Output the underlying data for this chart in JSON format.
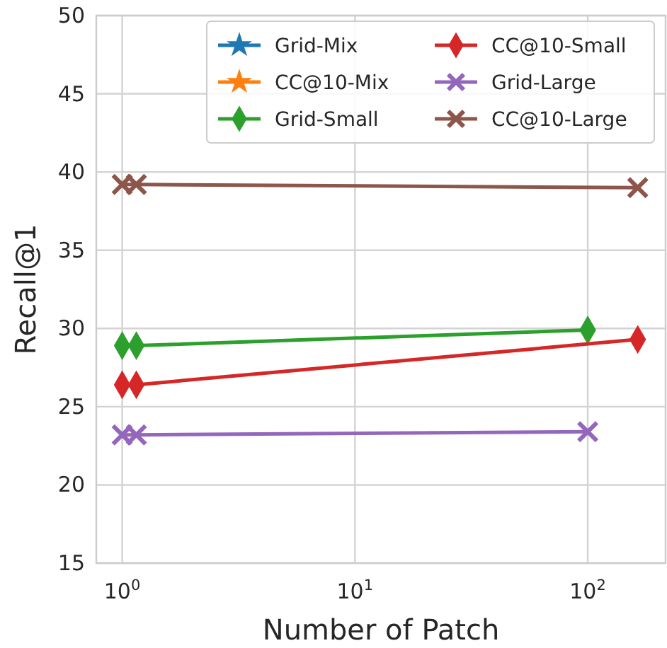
{
  "chart_data": {
    "type": "line",
    "xlabel": "Number of Patch",
    "ylabel": "Recall@1",
    "log": "x",
    "xlim": [
      0.774,
      216
    ],
    "ylim": [
      15,
      50
    ],
    "xticks": [
      {
        "value": 1,
        "label": "10$^{0}$"
      },
      {
        "value": 10,
        "label": "10$^{1}$"
      },
      {
        "value": 100,
        "label": "10$^{2}$"
      }
    ],
    "yticks": [
      15,
      20,
      25,
      30,
      35,
      40,
      45,
      50
    ],
    "grid": true,
    "legend": "top right",
    "series": [
      {
        "name": "Grid-Mix",
        "color": "#1f77b4",
        "marker": "star"
      },
      {
        "name": "CC@10-Mix",
        "color": "#ff7f0e",
        "marker": "star"
      },
      {
        "name": "Grid-Small",
        "color": "#2ca02c",
        "marker": "diamond",
        "x": [
          1,
          1.15,
          100
        ],
        "values": [
          28.9,
          28.9,
          29.9
        ]
      },
      {
        "name": "CC@10-Small",
        "color": "#d62728",
        "marker": "diamond",
        "x": [
          1,
          1.15,
          164
        ],
        "values": [
          26.4,
          26.4,
          29.3
        ]
      },
      {
        "name": "Grid-Large",
        "color": "#9467bd",
        "marker": "cross",
        "x": [
          1,
          1.15,
          100
        ],
        "values": [
          23.2,
          23.2,
          23.4
        ]
      },
      {
        "name": "CC@10-Large",
        "color": "#8c564b",
        "marker": "cross",
        "x": [
          1,
          1.15,
          164
        ],
        "values": [
          39.2,
          39.2,
          39.0
        ]
      }
    ]
  }
}
